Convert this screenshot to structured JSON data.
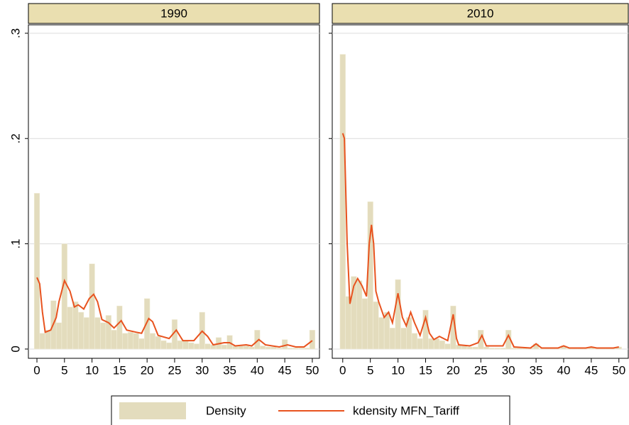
{
  "chart_data": [
    {
      "type": "histogram",
      "title": "1990",
      "bins": [
        -0.5,
        0.5,
        1.5,
        2.5,
        3.5,
        4.5,
        5.5,
        6.5,
        7.5,
        8.5,
        9.5,
        10.5,
        11.5,
        12.5,
        13.5,
        14.5,
        15.5,
        16.5,
        17.5,
        18.5,
        19.5,
        20.5,
        21.5,
        22.5,
        23.5,
        24.5,
        25.5,
        26.5,
        27.5,
        28.5,
        29.5,
        30.5,
        31.5,
        32.5,
        33.5,
        34.5,
        35.5,
        36.5,
        37.5,
        38.5,
        39.5,
        40.5,
        41.5,
        42.5,
        43.5,
        44.5,
        45.5,
        46.5,
        47.5,
        48.5,
        49.5,
        50.5
      ],
      "values": [
        0.148,
        0.015,
        0.018,
        0.046,
        0.025,
        0.1,
        0.04,
        0.045,
        0.035,
        0.03,
        0.081,
        0.03,
        0.025,
        0.032,
        0.018,
        0.041,
        0.015,
        0.016,
        0.015,
        0.01,
        0.048,
        0.015,
        0.012,
        0.008,
        0.006,
        0.028,
        0.008,
        0.008,
        0.006,
        0.005,
        0.035,
        0.005,
        0.004,
        0.011,
        0.004,
        0.013,
        0.003,
        0.003,
        0.003,
        0.002,
        0.018,
        0.003,
        0.002,
        0.002,
        0.001,
        0.009,
        0.001,
        0.001,
        0.001,
        0.001,
        0.018
      ],
      "line": {
        "x": [
          0,
          0.5,
          1,
          1.5,
          2.5,
          3.5,
          4,
          5,
          6,
          6.8,
          7.5,
          8.5,
          9.5,
          10.3,
          11,
          11.8,
          13,
          14,
          15.3,
          16.3,
          18,
          19,
          20.3,
          21,
          22,
          24,
          25.3,
          26.5,
          28.5,
          30,
          31,
          32,
          34,
          35,
          36,
          38,
          39,
          40.3,
          41.5,
          44,
          45.5,
          47,
          48.5,
          50
        ],
        "values": [
          0.068,
          0.062,
          0.035,
          0.016,
          0.018,
          0.03,
          0.045,
          0.065,
          0.055,
          0.04,
          0.042,
          0.038,
          0.048,
          0.052,
          0.045,
          0.028,
          0.025,
          0.02,
          0.027,
          0.018,
          0.016,
          0.015,
          0.029,
          0.026,
          0.013,
          0.01,
          0.018,
          0.008,
          0.008,
          0.017,
          0.012,
          0.004,
          0.006,
          0.006,
          0.003,
          0.004,
          0.003,
          0.009,
          0.004,
          0.002,
          0.004,
          0.002,
          0.002,
          0.008
        ]
      },
      "xlim": [
        -1.55,
        51.3
      ],
      "ylim": [
        -0.0088,
        0.308
      ],
      "xticks": [
        0,
        5,
        10,
        15,
        20,
        25,
        30,
        35,
        40,
        45,
        50
      ],
      "yticks": [
        0,
        {
          "value": 0.1,
          "label": ".1"
        },
        {
          "value": 0.2,
          "label": ".2"
        },
        {
          "value": 0.3,
          "label": ".3"
        }
      ],
      "grid": true
    },
    {
      "type": "histogram",
      "title": "2010",
      "bins": [
        -0.5,
        0.5,
        1.5,
        2.5,
        3.5,
        4.5,
        5.5,
        6.5,
        7.5,
        8.5,
        9.5,
        10.5,
        11.5,
        12.5,
        13.5,
        14.5,
        15.5,
        16.5,
        17.5,
        18.5,
        19.5,
        20.5,
        21.5,
        22.5,
        23.5,
        24.5,
        25.5,
        26.5,
        27.5,
        28.5,
        29.5,
        30.5,
        31.5,
        32.5,
        33.5,
        34.5,
        35.5,
        36.5,
        37.5,
        38.5,
        39.5,
        40.5,
        41.5,
        42.5,
        43.5,
        44.5,
        45.5,
        46.5,
        47.5,
        48.5,
        49.5,
        50.5
      ],
      "values": [
        0.28,
        0.05,
        0.069,
        0.065,
        0.048,
        0.14,
        0.045,
        0.03,
        0.035,
        0.02,
        0.066,
        0.02,
        0.03,
        0.015,
        0.01,
        0.037,
        0.01,
        0.01,
        0.008,
        0.005,
        0.041,
        0.004,
        0.003,
        0.002,
        0.002,
        0.018,
        0.002,
        0.001,
        0.001,
        0.001,
        0.018,
        0.001,
        0.001,
        0.001,
        0.001,
        0.005,
        0.0005,
        0.0005,
        0.0005,
        0.0005,
        0.003,
        0.0005,
        0.0005,
        0.0005,
        0.0005,
        0.002,
        0.0005,
        0.0005,
        0.0005,
        0.0005,
        0.002
      ],
      "line": {
        "x": [
          0,
          0.3,
          0.8,
          1.3,
          2,
          2.7,
          3.5,
          4.3,
          4.8,
          5.2,
          5.6,
          6,
          6.5,
          7.5,
          8.3,
          9,
          10,
          10.8,
          11.5,
          12.3,
          13,
          14,
          15,
          15.7,
          16.5,
          17.5,
          19,
          20,
          20.6,
          21,
          23,
          24.5,
          25.2,
          26,
          29,
          30,
          31,
          34,
          35,
          36,
          39,
          40,
          41,
          44,
          45,
          46,
          49,
          50
        ],
        "values": [
          0.205,
          0.2,
          0.1,
          0.043,
          0.06,
          0.067,
          0.06,
          0.05,
          0.1,
          0.118,
          0.1,
          0.055,
          0.045,
          0.03,
          0.035,
          0.025,
          0.053,
          0.03,
          0.022,
          0.035,
          0.025,
          0.013,
          0.03,
          0.015,
          0.009,
          0.012,
          0.008,
          0.033,
          0.01,
          0.004,
          0.003,
          0.006,
          0.013,
          0.003,
          0.003,
          0.013,
          0.002,
          0.001,
          0.005,
          0.001,
          0.001,
          0.003,
          0.001,
          0.001,
          0.002,
          0.001,
          0.001,
          0.002
        ]
      },
      "xlim": [
        -1.9,
        51.7
      ],
      "ylim": [
        -0.0088,
        0.308
      ],
      "xticks": [
        0,
        5,
        10,
        15,
        20,
        25,
        30,
        35,
        40,
        45,
        50
      ],
      "yticks": [
        0,
        {
          "value": 0.1,
          "label": ".1"
        },
        {
          "value": 0.2,
          "label": ".2"
        },
        {
          "value": 0.3,
          "label": ".3"
        }
      ],
      "grid": true
    }
  ],
  "legend": [
    {
      "name": "Density",
      "color": "#e3dcbd"
    },
    {
      "name": "kdensity MFN_Tariff",
      "color": "#e8531f"
    }
  ]
}
